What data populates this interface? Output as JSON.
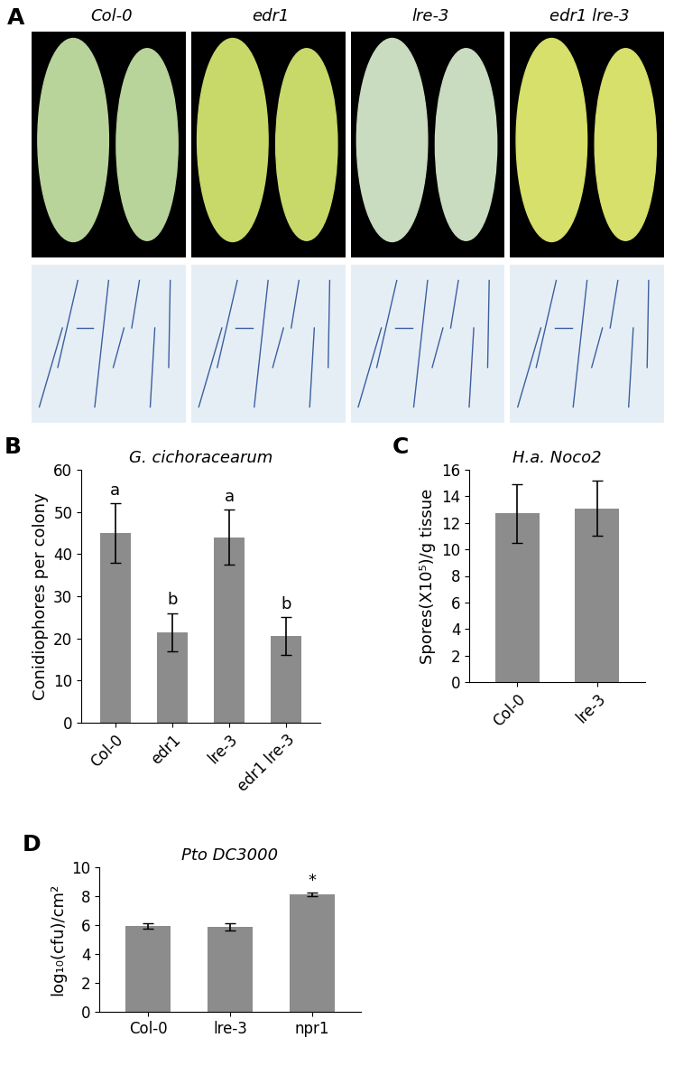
{
  "panel_a": {
    "panel": "A",
    "genotypes": [
      "Col-0",
      "edr1",
      "lre-3",
      "edr1 lre-3"
    ]
  },
  "chart_data": [
    {
      "panel": "B",
      "type": "bar",
      "title": "G. cichoracearum",
      "y_label": "Conidiophores per colony",
      "categories": [
        "Col-0",
        "edr1",
        "lre-3",
        "edr1 lre-3"
      ],
      "values": [
        45,
        21.5,
        44,
        20.5
      ],
      "errors": [
        7,
        4.5,
        6.5,
        4.5
      ],
      "annotations": [
        "a",
        "b",
        "a",
        "b"
      ],
      "color": "#8c8c8c",
      "ylim": [
        0,
        60
      ],
      "yticks": [
        0,
        10,
        20,
        30,
        40,
        50,
        60
      ]
    },
    {
      "panel": "C",
      "type": "bar",
      "title": "H.a. Noco2",
      "y_label": "Spores(X10⁵)/g tissue",
      "categories": [
        "Col-0",
        "lre-3"
      ],
      "values": [
        12.7,
        13.1
      ],
      "errors": [
        2.2,
        2.1
      ],
      "color": "#8c8c8c",
      "ylim": [
        0,
        16
      ],
      "yticks": [
        0,
        2,
        4,
        6,
        8,
        10,
        12,
        14,
        16
      ]
    },
    {
      "panel": "D",
      "type": "bar",
      "title": "Pto DC3000",
      "y_label": "log₁₀(cfu)/cm²",
      "categories": [
        "Col-0",
        "lre-3",
        "npr1"
      ],
      "values": [
        5.95,
        5.9,
        8.15
      ],
      "errors": [
        0.2,
        0.25,
        0.12
      ],
      "annotations": [
        null,
        null,
        "*"
      ],
      "color": "#8c8c8c",
      "ylim": [
        0,
        10
      ],
      "yticks": [
        0,
        2,
        4,
        6,
        8,
        10
      ]
    }
  ]
}
